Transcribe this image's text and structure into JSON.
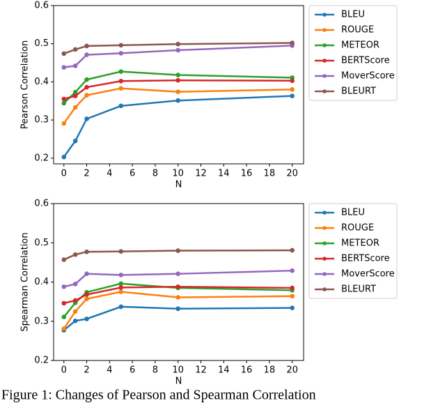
{
  "chart_data": [
    {
      "type": "line",
      "xlabel": "N",
      "ylabel": "Pearson Correlation",
      "x": [
        0,
        1,
        2,
        5,
        10,
        20
      ],
      "xlim": [
        -0.9,
        21
      ],
      "xticks": [
        0,
        2,
        4,
        6,
        8,
        10,
        12,
        14,
        16,
        18,
        20
      ],
      "ylim": [
        0.185,
        0.6
      ],
      "yticks": [
        0.2,
        0.3,
        0.4,
        0.5,
        0.6
      ],
      "legend": "outside-right",
      "series": [
        {
          "name": "BLEU",
          "color": "#1f77b4",
          "values": [
            0.203,
            0.245,
            0.303,
            0.337,
            0.351,
            0.363
          ]
        },
        {
          "name": "ROUGE",
          "color": "#ff7f0e",
          "values": [
            0.291,
            0.333,
            0.365,
            0.383,
            0.374,
            0.38
          ]
        },
        {
          "name": "METEOR",
          "color": "#2ca02c",
          "values": [
            0.344,
            0.373,
            0.406,
            0.427,
            0.418,
            0.411
          ]
        },
        {
          "name": "BERTScore",
          "color": "#d62728",
          "values": [
            0.355,
            0.363,
            0.386,
            0.402,
            0.404,
            0.403
          ]
        },
        {
          "name": "MoverScore",
          "color": "#9467bd",
          "values": [
            0.438,
            0.442,
            0.471,
            0.475,
            0.483,
            0.495
          ]
        },
        {
          "name": "BLEURT",
          "color": "#8c564b",
          "values": [
            0.474,
            0.485,
            0.494,
            0.496,
            0.499,
            0.502
          ]
        }
      ]
    },
    {
      "type": "line",
      "xlabel": "N",
      "ylabel": "Spearman Correlation",
      "x": [
        0,
        1,
        2,
        5,
        10,
        20
      ],
      "xlim": [
        -0.9,
        21
      ],
      "xticks": [
        0,
        2,
        4,
        6,
        8,
        10,
        12,
        14,
        16,
        18,
        20
      ],
      "ylim": [
        0.2,
        0.6
      ],
      "yticks": [
        0.2,
        0.3,
        0.4,
        0.5,
        0.6
      ],
      "legend": "outside-right",
      "series": [
        {
          "name": "BLEU",
          "color": "#1f77b4",
          "values": [
            0.277,
            0.301,
            0.306,
            0.337,
            0.332,
            0.334
          ]
        },
        {
          "name": "ROUGE",
          "color": "#ff7f0e",
          "values": [
            0.281,
            0.325,
            0.357,
            0.375,
            0.361,
            0.364
          ]
        },
        {
          "name": "METEOR",
          "color": "#2ca02c",
          "values": [
            0.311,
            0.347,
            0.374,
            0.396,
            0.385,
            0.379
          ]
        },
        {
          "name": "BERTScore",
          "color": "#d62728",
          "values": [
            0.346,
            0.353,
            0.368,
            0.386,
            0.388,
            0.385
          ]
        },
        {
          "name": "MoverScore",
          "color": "#9467bd",
          "values": [
            0.388,
            0.395,
            0.421,
            0.418,
            0.421,
            0.429
          ]
        },
        {
          "name": "BLEURT",
          "color": "#8c564b",
          "values": [
            0.457,
            0.47,
            0.477,
            0.478,
            0.48,
            0.481
          ]
        }
      ]
    }
  ],
  "caption": "Figure 1: Changes of Pearson and Spearman Correlation"
}
